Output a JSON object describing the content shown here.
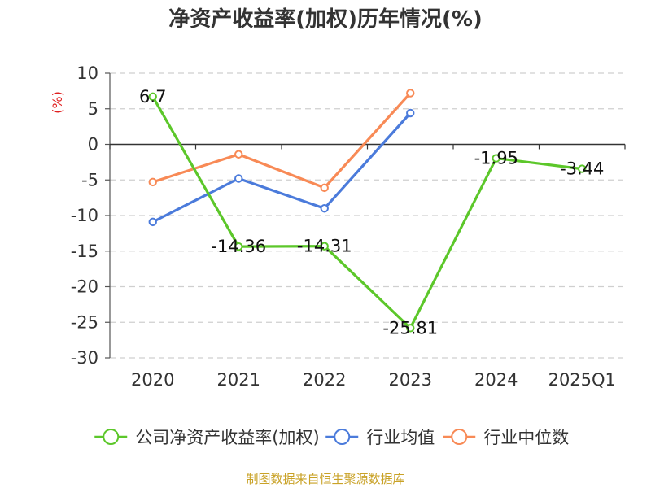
{
  "chart_data": {
    "type": "line",
    "title": "净资产收益率(加权)历年情况(%)",
    "xlabel": "",
    "ylabel": "(%)",
    "ylabel_color": "#e02020",
    "categories": [
      "2020",
      "2021",
      "2022",
      "2023",
      "2024",
      "2025Q1"
    ],
    "ylim": [
      -30,
      10
    ],
    "yticks": [
      10,
      5,
      0,
      -5,
      -10,
      -15,
      -20,
      -25,
      -30
    ],
    "grid": true,
    "legend_position": "bottom",
    "series": [
      {
        "name": "公司净资产收益率(加权)",
        "color": "#5cc72a",
        "values": [
          6.7,
          -14.36,
          -14.31,
          -25.81,
          -1.95,
          -3.44
        ],
        "labels": [
          "6.7",
          "-14.36",
          "-14.31",
          "-25.81",
          "-1.95",
          "-3.44"
        ]
      },
      {
        "name": "行业均值",
        "color": "#4b7bdb",
        "values": [
          -10.9,
          -4.8,
          -9.0,
          4.4,
          null,
          null
        ]
      },
      {
        "name": "行业中位数",
        "color": "#f88a56",
        "values": [
          -5.3,
          -1.4,
          -6.1,
          7.2,
          null,
          null
        ]
      }
    ],
    "source": "制图数据来自恒生聚源数据库",
    "source_color": "#c9a227"
  }
}
